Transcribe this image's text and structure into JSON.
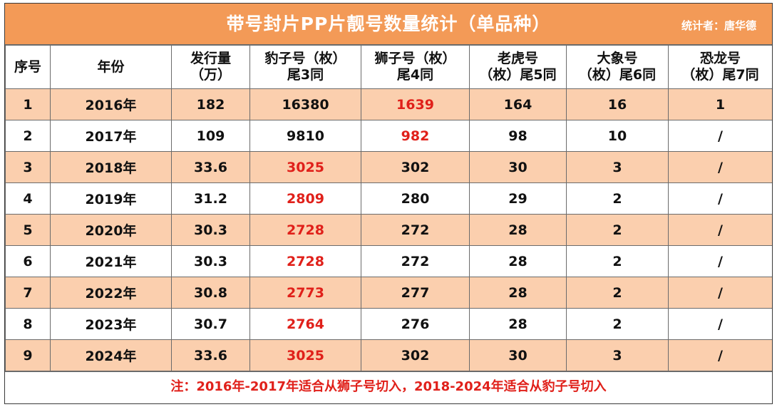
{
  "title": "带号封片PP片靓号数量统计（单品种）",
  "author": "统计者：唐华德",
  "headers": [
    [
      "序号"
    ],
    [
      "年份"
    ],
    [
      "发行量",
      "（万）"
    ],
    [
      "豹子号（枚）",
      "尾3同"
    ],
    [
      "狮子号（枚）",
      "尾4同"
    ],
    [
      "老虎号",
      "（枚）尾5同"
    ],
    [
      "大象号",
      "（枚）尾6同"
    ],
    [
      "恐龙号",
      "（枚）尾7同"
    ]
  ],
  "rows": [
    {
      "no": "1",
      "year": "2016年",
      "issue": "182",
      "leopard": "16380",
      "lion": "1639",
      "tiger": "164",
      "elephant": "16",
      "dino": "1"
    },
    {
      "no": "2",
      "year": "2017年",
      "issue": "109",
      "leopard": "9810",
      "lion": "982",
      "tiger": "98",
      "elephant": "10",
      "dino": "/"
    },
    {
      "no": "3",
      "year": "2018年",
      "issue": "33.6",
      "leopard": "3025",
      "lion": "302",
      "tiger": "30",
      "elephant": "3",
      "dino": "/"
    },
    {
      "no": "4",
      "year": "2019年",
      "issue": "31.2",
      "leopard": "2809",
      "lion": "280",
      "tiger": "29",
      "elephant": "2",
      "dino": "/"
    },
    {
      "no": "5",
      "year": "2020年",
      "issue": "30.3",
      "leopard": "2728",
      "lion": "272",
      "tiger": "28",
      "elephant": "2",
      "dino": "/"
    },
    {
      "no": "6",
      "year": "2021年",
      "issue": "30.3",
      "leopard": "2728",
      "lion": "272",
      "tiger": "28",
      "elephant": "2",
      "dino": "/"
    },
    {
      "no": "7",
      "year": "2022年",
      "issue": "30.8",
      "leopard": "2773",
      "lion": "277",
      "tiger": "28",
      "elephant": "2",
      "dino": "/"
    },
    {
      "no": "8",
      "year": "2023年",
      "issue": "30.7",
      "leopard": "2764",
      "lion": "276",
      "tiger": "28",
      "elephant": "2",
      "dino": "/"
    },
    {
      "no": "9",
      "year": "2024年",
      "issue": "33.6",
      "leopard": "3025",
      "lion": "302",
      "tiger": "30",
      "elephant": "3",
      "dino": "/"
    }
  ],
  "highlight_color": "#e0201a",
  "band_color": "#fbcfae",
  "title_color": "#f39a57",
  "note": "注：2016年-2017年适合从狮子号切入，2018-2024年适合从豹子号切入"
}
